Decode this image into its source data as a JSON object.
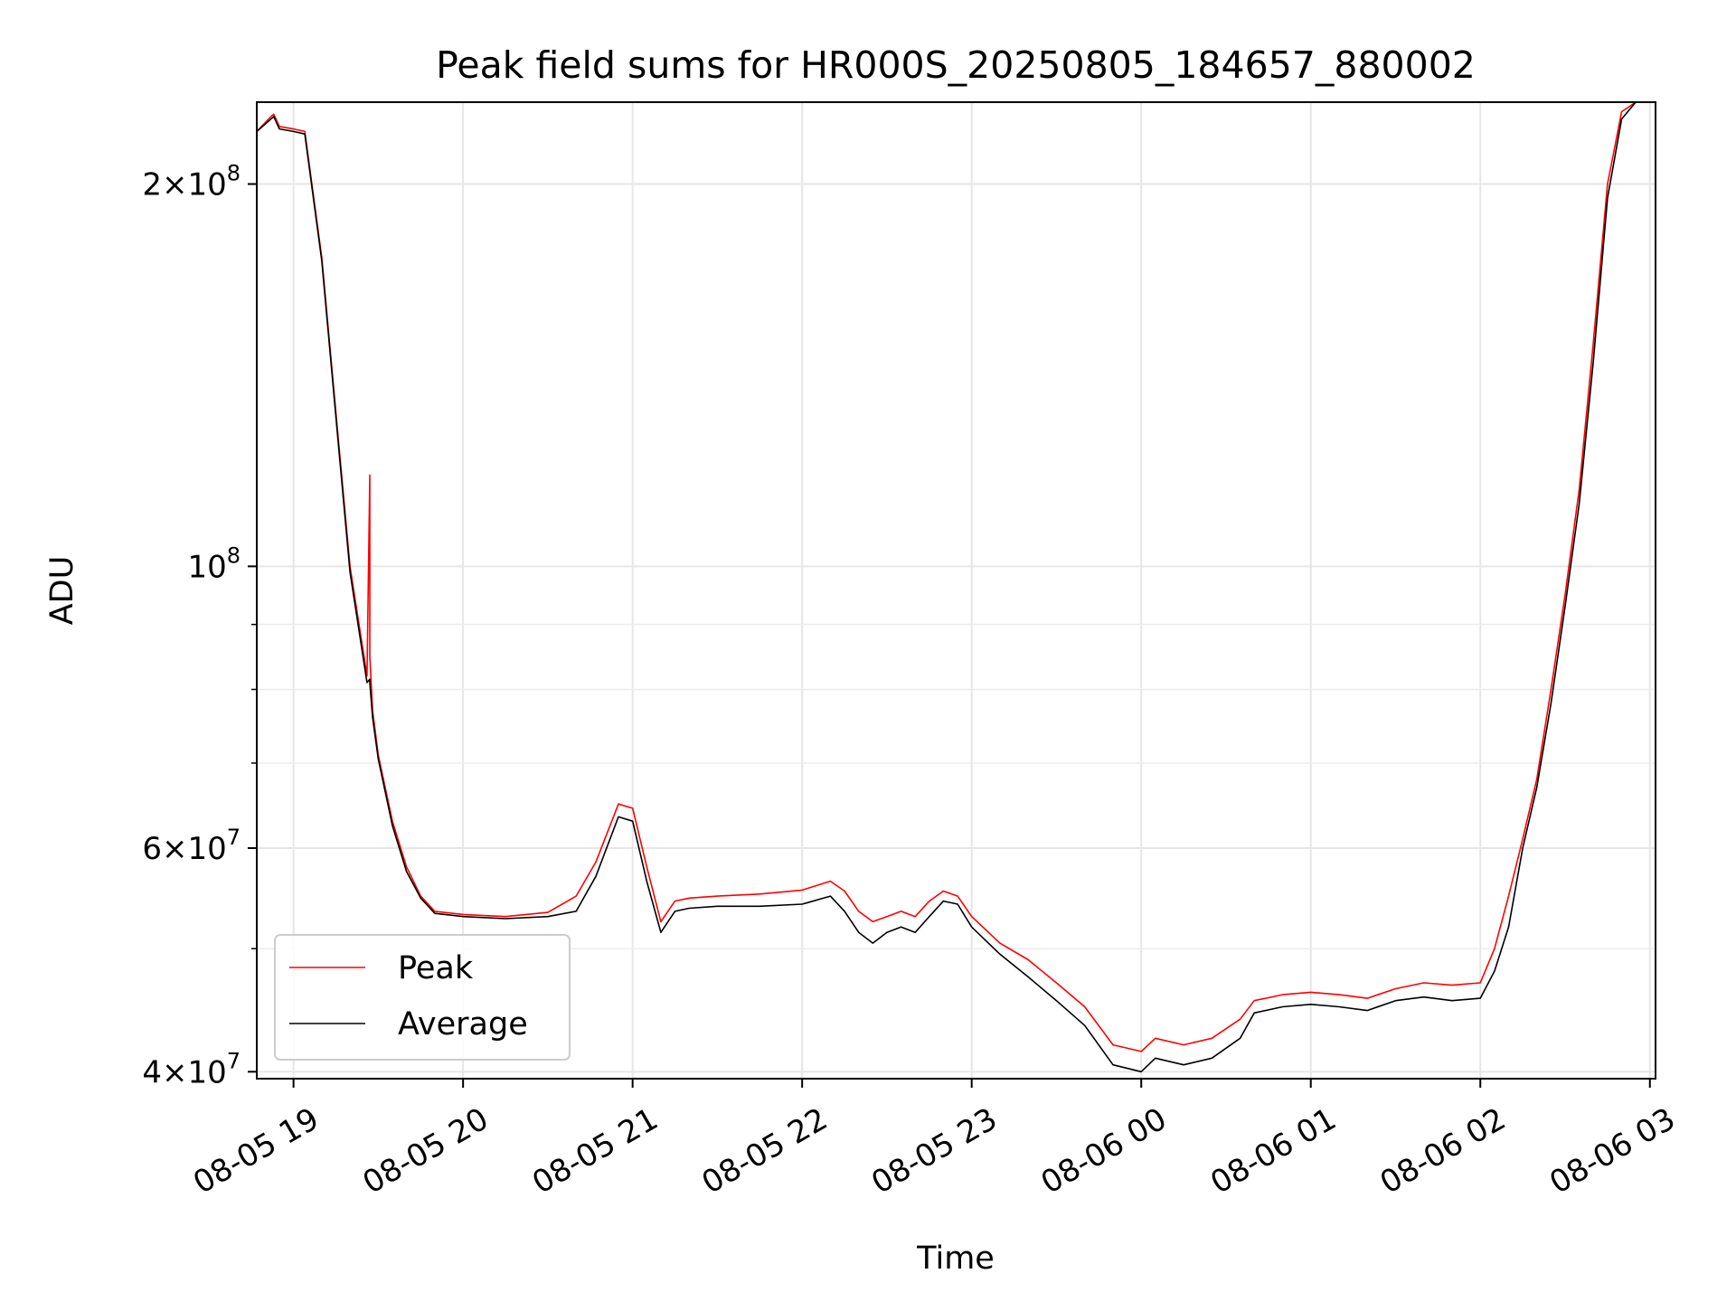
{
  "chart_data": {
    "type": "line",
    "title": "Peak field sums for HR000S_20250805_184657_880002",
    "xlabel": "Time",
    "ylabel": "ADU",
    "yscale": "log",
    "ylim": [
      39500000,
      232000000
    ],
    "xlim": [
      "2025-08-05 18:47",
      "2025-08-06 03:02"
    ],
    "grid": true,
    "legend_position": "lower-left",
    "x_ticks": [
      "08-05 19",
      "08-05 20",
      "08-05 21",
      "08-05 22",
      "08-05 23",
      "08-06 00",
      "08-06 01",
      "08-06 02",
      "08-06 03"
    ],
    "y_ticks": [
      {
        "value": 40000000,
        "base": "4",
        "exp": "7"
      },
      {
        "value": 60000000,
        "base": "6",
        "exp": "7"
      },
      {
        "value": 100000000,
        "base": "10",
        "exp": "8"
      },
      {
        "value": 200000000,
        "base": "2",
        "exp": "8"
      }
    ],
    "series": [
      {
        "name": "Peak",
        "color": "#ff0000",
        "x": [
          "2025-08-05 18:47",
          "2025-08-05 18:52",
          "2025-08-05 18:53",
          "2025-08-05 18:55",
          "2025-08-05 19:00",
          "2025-08-05 19:04",
          "2025-08-05 19:10",
          "2025-08-05 19:16",
          "2025-08-05 19:20",
          "2025-08-05 19:26",
          "2025-08-05 19:27",
          "2025-08-05 19:27",
          "2025-08-05 19:28",
          "2025-08-05 19:30",
          "2025-08-05 19:35",
          "2025-08-05 19:40",
          "2025-08-05 19:45",
          "2025-08-05 19:50",
          "2025-08-05 20:00",
          "2025-08-05 20:15",
          "2025-08-05 20:30",
          "2025-08-05 20:40",
          "2025-08-05 20:47",
          "2025-08-05 20:55",
          "2025-08-05 21:00",
          "2025-08-05 21:05",
          "2025-08-05 21:10",
          "2025-08-05 21:15",
          "2025-08-05 21:20",
          "2025-08-05 21:30",
          "2025-08-05 21:45",
          "2025-08-05 22:00",
          "2025-08-05 22:10",
          "2025-08-05 22:15",
          "2025-08-05 22:20",
          "2025-08-05 22:25",
          "2025-08-05 22:30",
          "2025-08-05 22:35",
          "2025-08-05 22:40",
          "2025-08-05 22:45",
          "2025-08-05 22:50",
          "2025-08-05 22:55",
          "2025-08-05 23:00",
          "2025-08-05 23:10",
          "2025-08-05 23:20",
          "2025-08-05 23:30",
          "2025-08-05 23:40",
          "2025-08-05 23:50",
          "2025-08-06 00:00",
          "2025-08-06 00:05",
          "2025-08-06 00:15",
          "2025-08-06 00:25",
          "2025-08-06 00:35",
          "2025-08-06 00:40",
          "2025-08-06 00:50",
          "2025-08-06 01:00",
          "2025-08-06 01:10",
          "2025-08-06 01:20",
          "2025-08-06 01:30",
          "2025-08-06 01:40",
          "2025-08-06 01:50",
          "2025-08-06 02:00",
          "2025-08-06 02:05",
          "2025-08-06 02:10",
          "2025-08-06 02:15",
          "2025-08-06 02:20",
          "2025-08-06 02:25",
          "2025-08-06 02:30",
          "2025-08-06 02:35",
          "2025-08-06 02:40",
          "2025-08-06 02:45",
          "2025-08-06 02:50",
          "2025-08-06 02:55",
          "2025-08-06 03:00"
        ],
        "values": [
          220000000,
          226000000,
          227000000,
          222000000,
          221000000,
          220000000,
          175000000,
          125000000,
          100000000,
          82000000,
          118000000,
          85000000,
          77000000,
          71000000,
          63000000,
          58000000,
          55000000,
          53500000,
          53200000,
          53000000,
          53400000,
          55000000,
          58500000,
          65000000,
          64500000,
          58000000,
          52500000,
          54500000,
          54800000,
          55000000,
          55200000,
          55600000,
          56500000,
          55500000,
          53500000,
          52500000,
          53000000,
          53500000,
          53000000,
          54500000,
          55500000,
          55000000,
          53000000,
          50500000,
          49000000,
          47000000,
          45000000,
          42000000,
          41500000,
          42500000,
          42000000,
          42500000,
          44000000,
          45500000,
          46000000,
          46200000,
          46000000,
          45700000,
          46500000,
          47000000,
          46800000,
          47000000,
          50000000,
          55000000,
          61000000,
          68000000,
          80000000,
          95000000,
          115000000,
          150000000,
          200000000,
          228000000,
          232000000,
          232000000
        ]
      },
      {
        "name": "Average",
        "color": "#000000",
        "x": [
          "2025-08-05 18:47",
          "2025-08-05 18:52",
          "2025-08-05 18:53",
          "2025-08-05 18:55",
          "2025-08-05 19:00",
          "2025-08-05 19:04",
          "2025-08-05 19:10",
          "2025-08-05 19:16",
          "2025-08-05 19:20",
          "2025-08-05 19:26",
          "2025-08-05 19:27",
          "2025-08-05 19:27",
          "2025-08-05 19:28",
          "2025-08-05 19:30",
          "2025-08-05 19:35",
          "2025-08-05 19:40",
          "2025-08-05 19:45",
          "2025-08-05 19:50",
          "2025-08-05 20:00",
          "2025-08-05 20:15",
          "2025-08-05 20:30",
          "2025-08-05 20:40",
          "2025-08-05 20:47",
          "2025-08-05 20:55",
          "2025-08-05 21:00",
          "2025-08-05 21:05",
          "2025-08-05 21:10",
          "2025-08-05 21:15",
          "2025-08-05 21:20",
          "2025-08-05 21:30",
          "2025-08-05 21:45",
          "2025-08-05 22:00",
          "2025-08-05 22:10",
          "2025-08-05 22:15",
          "2025-08-05 22:20",
          "2025-08-05 22:25",
          "2025-08-05 22:30",
          "2025-08-05 22:35",
          "2025-08-05 22:40",
          "2025-08-05 22:45",
          "2025-08-05 22:50",
          "2025-08-05 22:55",
          "2025-08-05 23:00",
          "2025-08-05 23:10",
          "2025-08-05 23:20",
          "2025-08-05 23:30",
          "2025-08-05 23:40",
          "2025-08-05 23:50",
          "2025-08-06 00:00",
          "2025-08-06 00:05",
          "2025-08-06 00:15",
          "2025-08-06 00:25",
          "2025-08-06 00:35",
          "2025-08-06 00:40",
          "2025-08-06 00:50",
          "2025-08-06 01:00",
          "2025-08-06 01:10",
          "2025-08-06 01:20",
          "2025-08-06 01:30",
          "2025-08-06 01:40",
          "2025-08-06 01:50",
          "2025-08-06 02:00",
          "2025-08-06 02:05",
          "2025-08-06 02:10",
          "2025-08-06 02:15",
          "2025-08-06 02:20",
          "2025-08-06 02:25",
          "2025-08-06 02:30",
          "2025-08-06 02:35",
          "2025-08-06 02:40",
          "2025-08-06 02:45",
          "2025-08-06 02:50",
          "2025-08-06 02:55",
          "2025-08-06 03:00"
        ],
        "values": [
          220000000,
          225000000,
          226000000,
          221000000,
          220000000,
          219000000,
          174000000,
          124000000,
          99000000,
          81000000,
          81500000,
          81000000,
          76000000,
          70500000,
          62500000,
          57500000,
          54800000,
          53300000,
          53000000,
          52800000,
          53000000,
          53500000,
          57000000,
          63500000,
          63000000,
          56500000,
          51500000,
          53500000,
          53800000,
          54000000,
          54000000,
          54200000,
          55000000,
          53500000,
          51500000,
          50500000,
          51500000,
          52000000,
          51500000,
          53000000,
          54500000,
          54200000,
          52000000,
          49500000,
          47500000,
          45500000,
          43500000,
          40500000,
          40000000,
          41000000,
          40500000,
          41000000,
          42500000,
          44500000,
          45000000,
          45200000,
          45000000,
          44700000,
          45500000,
          45800000,
          45500000,
          45700000,
          48000000,
          52000000,
          60000000,
          67000000,
          78000000,
          93000000,
          112000000,
          145000000,
          195000000,
          225000000,
          232000000,
          232000000
        ]
      }
    ]
  }
}
